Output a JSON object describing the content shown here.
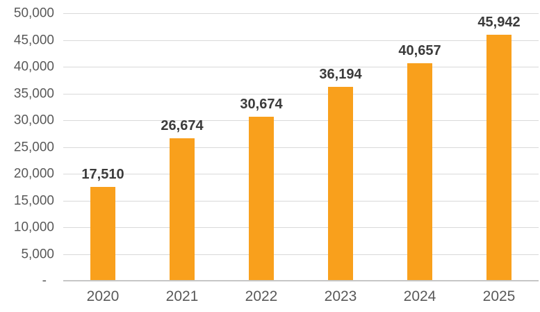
{
  "chart_data": {
    "type": "bar",
    "title": "",
    "xlabel": "",
    "ylabel": "",
    "categories": [
      "2020",
      "2021",
      "2022",
      "2023",
      "2024",
      "2025"
    ],
    "values": [
      17510,
      26674,
      30674,
      36194,
      40657,
      45942
    ],
    "data_labels": [
      "17,510",
      "26,674",
      "30,674",
      "36,194",
      "40,657",
      "45,942"
    ],
    "ylim": [
      0,
      50000
    ],
    "ytick_step": 5000,
    "ytick_labels": [
      "-",
      "5,000",
      "10,000",
      "15,000",
      "20,000",
      "25,000",
      "30,000",
      "35,000",
      "40,000",
      "45,000",
      "50,000"
    ],
    "grid": true,
    "legend": false,
    "colors": {
      "bar": "#F9A01C",
      "data_label": "#3B3B3B",
      "axis_text": "#595959",
      "gridline": "#D9D9D9",
      "axis_line": "#C6C6C6",
      "background": "#FFFFFF"
    }
  }
}
